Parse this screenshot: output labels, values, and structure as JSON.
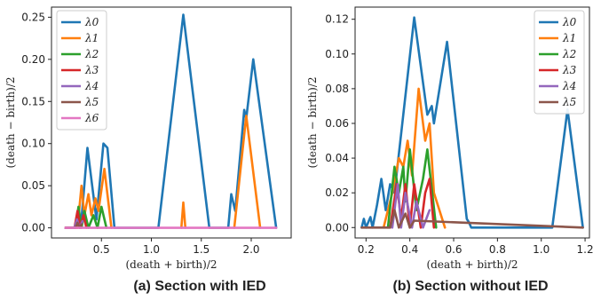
{
  "chart_data": [
    {
      "type": "line",
      "caption": "(a) Section with IED",
      "xlabel": "(death + birth)/2",
      "ylabel": "(death − birth)/2",
      "xlim": [
        0.0,
        2.4
      ],
      "ylim": [
        -0.012,
        0.262
      ],
      "xticks": [
        0.5,
        1.0,
        1.5,
        2.0
      ],
      "xticklabels": [
        "0.5",
        "1.0",
        "1.5",
        "2.0"
      ],
      "yticks": [
        0.0,
        0.05,
        0.1,
        0.15,
        0.2,
        0.25
      ],
      "yticklabels": [
        "0.00",
        "0.05",
        "0.10",
        "0.15",
        "0.20",
        "0.25"
      ],
      "grid": false,
      "legend_position": "top-left",
      "series": [
        {
          "name": "λ0",
          "color": "#1f77b4",
          "x": [
            0.14,
            0.26,
            0.3,
            0.36,
            0.45,
            0.5,
            0.52,
            0.56,
            0.63,
            1.07,
            1.32,
            1.58,
            1.77,
            1.8,
            1.84,
            1.93,
            1.95,
            2.02,
            2.25
          ],
          "y": [
            0.0,
            0.0,
            0.01,
            0.095,
            0.01,
            0.075,
            0.1,
            0.095,
            0.0,
            0.0,
            0.253,
            0.0,
            0.0,
            0.04,
            0.02,
            0.14,
            0.13,
            0.2,
            0.0
          ]
        },
        {
          "name": "λ1",
          "color": "#ff7f0e",
          "x": [
            0.14,
            0.26,
            0.3,
            0.33,
            0.37,
            0.4,
            0.44,
            0.47,
            0.53,
            0.6,
            1.3,
            1.32,
            1.34,
            1.83,
            1.95,
            2.09
          ],
          "y": [
            0.0,
            0.0,
            0.05,
            0.015,
            0.04,
            0.015,
            0.035,
            0.02,
            0.07,
            0.0,
            0.0,
            0.03,
            0.0,
            0.0,
            0.133,
            0.0
          ],
          "segments": [
            [
              0,
              10
            ],
            [
              10,
              13
            ],
            [
              13,
              16
            ]
          ]
        },
        {
          "name": "λ2",
          "color": "#2ca02c",
          "x": [
            0.14,
            0.24,
            0.27,
            0.3,
            0.33,
            0.37,
            0.42,
            0.46,
            0.5,
            0.55
          ],
          "y": [
            0.0,
            0.0,
            0.025,
            0.0,
            0.02,
            0.0,
            0.015,
            0.0,
            0.025,
            0.0
          ]
        },
        {
          "name": "λ3",
          "color": "#d62728",
          "x": [
            0.14,
            0.23,
            0.26,
            0.29,
            0.32,
            0.35
          ],
          "y": [
            0.0,
            0.0,
            0.02,
            0.0,
            0.015,
            0.0
          ]
        },
        {
          "name": "λ4",
          "color": "#9467bd",
          "x": [
            0.14,
            0.23,
            0.255,
            0.28,
            0.31
          ],
          "y": [
            0.0,
            0.0,
            0.01,
            0.0,
            0.008
          ]
        },
        {
          "name": "λ5",
          "color": "#8c564b",
          "x": [
            0.14,
            0.24,
            0.26,
            0.28,
            0.3
          ],
          "y": [
            0.0,
            0.0,
            0.006,
            0.0,
            0.004
          ]
        },
        {
          "name": "λ6",
          "color": "#e377c2",
          "x": [
            0.14,
            2.25
          ],
          "y": [
            0.0,
            0.0
          ]
        }
      ]
    },
    {
      "type": "line",
      "caption": "(b) Section without IED",
      "xlabel": "(death + birth)/2",
      "ylabel": "(death − birth)/2",
      "xlim": [
        0.15,
        1.22
      ],
      "ylim": [
        -0.006,
        0.127
      ],
      "xticks": [
        0.2,
        0.4,
        0.6,
        0.8,
        1.0,
        1.2
      ],
      "xticklabels": [
        "0.2",
        "0.4",
        "0.6",
        "0.8",
        "1.0",
        "1.2"
      ],
      "yticks": [
        0.0,
        0.02,
        0.04,
        0.06,
        0.08,
        0.1,
        0.12
      ],
      "yticklabels": [
        "0.00",
        "0.02",
        "0.04",
        "0.06",
        "0.08",
        "0.10",
        "0.12"
      ],
      "grid": false,
      "legend_position": "top-right",
      "series": [
        {
          "name": "λ0",
          "color": "#1f77b4",
          "x": [
            0.18,
            0.19,
            0.2,
            0.22,
            0.23,
            0.25,
            0.27,
            0.29,
            0.31,
            0.33,
            0.42,
            0.48,
            0.5,
            0.51,
            0.57,
            0.66,
            0.67,
            0.68,
            1.05,
            1.12,
            1.19
          ],
          "y": [
            0.0,
            0.005,
            0.0,
            0.006,
            0.0,
            0.013,
            0.028,
            0.01,
            0.025,
            0.02,
            0.121,
            0.065,
            0.07,
            0.06,
            0.107,
            0.005,
            0.003,
            0.0,
            0.0,
            0.068,
            0.0
          ]
        },
        {
          "name": "λ1",
          "color": "#ff7f0e",
          "x": [
            0.28,
            0.32,
            0.35,
            0.37,
            0.39,
            0.41,
            0.44,
            0.47,
            0.49,
            0.51,
            0.56
          ],
          "y": [
            0.0,
            0.02,
            0.04,
            0.035,
            0.05,
            0.03,
            0.08,
            0.05,
            0.06,
            0.02,
            0.0
          ]
        },
        {
          "name": "λ2",
          "color": "#2ca02c",
          "x": [
            0.3,
            0.33,
            0.35,
            0.37,
            0.38,
            0.4,
            0.43,
            0.46,
            0.48,
            0.52
          ],
          "y": [
            0.0,
            0.035,
            0.02,
            0.035,
            0.015,
            0.045,
            0.01,
            0.028,
            0.045,
            0.0
          ]
        },
        {
          "name": "λ3",
          "color": "#d62728",
          "x": [
            0.31,
            0.34,
            0.36,
            0.38,
            0.4,
            0.42,
            0.45,
            0.47,
            0.49,
            0.51
          ],
          "y": [
            0.0,
            0.025,
            0.005,
            0.025,
            0.0,
            0.025,
            0.0,
            0.02,
            0.028,
            0.0
          ]
        },
        {
          "name": "λ4",
          "color": "#9467bd",
          "x": [
            0.32,
            0.345,
            0.36,
            0.38,
            0.41,
            0.43,
            0.46,
            0.49
          ],
          "y": [
            0.0,
            0.025,
            0.0,
            0.02,
            0.0,
            0.015,
            0.0,
            0.01
          ]
        },
        {
          "name": "λ5",
          "color": "#8c564b",
          "x": [
            0.18,
            0.31,
            0.33,
            0.35,
            0.38,
            0.4,
            0.42,
            1.19
          ],
          "y": [
            0.0,
            0.0,
            0.01,
            0.0,
            0.008,
            0.0,
            0.004,
            0.0
          ]
        }
      ]
    }
  ]
}
